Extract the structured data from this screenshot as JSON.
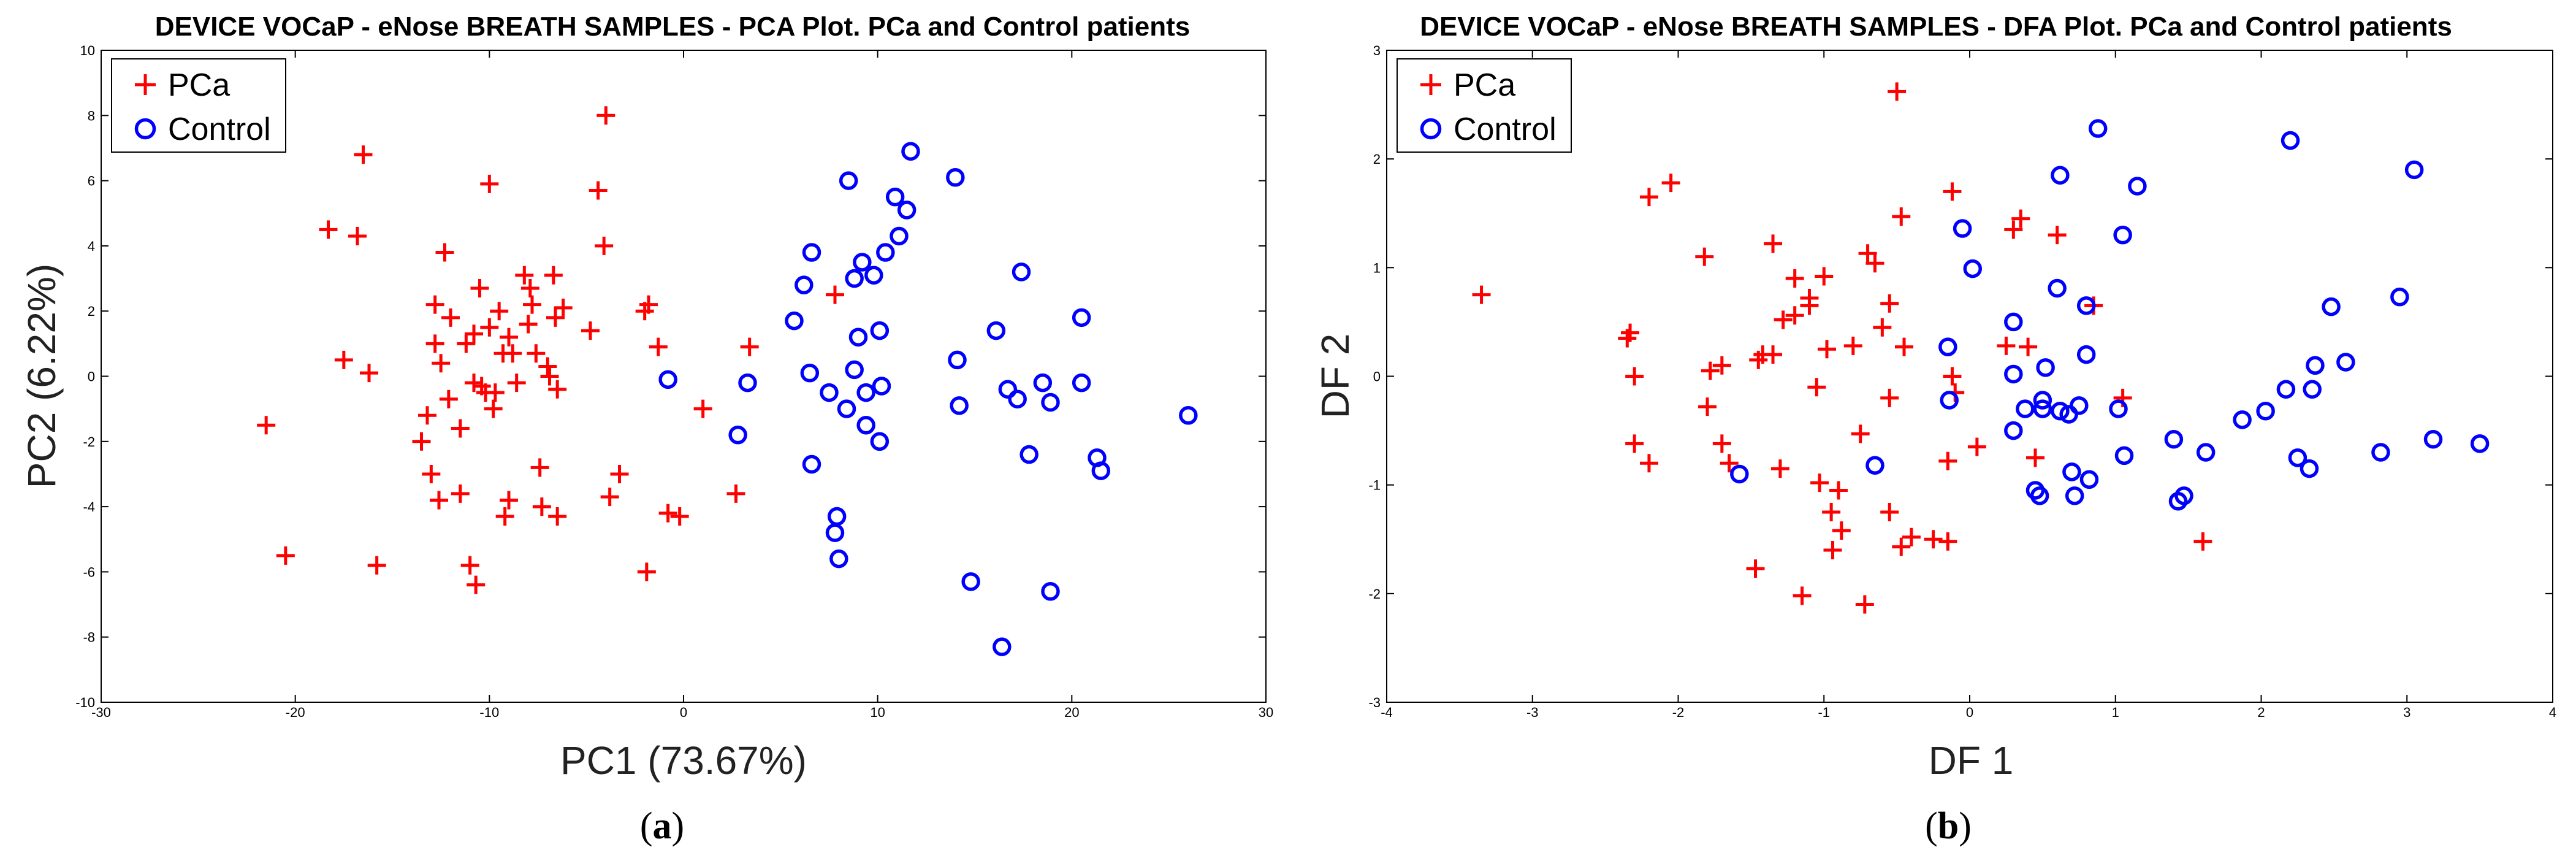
{
  "chart_data": [
    {
      "id": "a",
      "type": "scatter",
      "title": "DEVICE VOCaP - eNose BREATH SAMPLES - PCA Plot. PCa and Control patients",
      "xlabel": "PC1 (73.67%)",
      "ylabel": "PC2 (6.22%)",
      "xlim": [
        -30,
        30
      ],
      "ylim": [
        -10,
        10
      ],
      "xticks": [
        -30,
        -20,
        -10,
        0,
        10,
        20,
        30
      ],
      "yticks": [
        -10,
        -8,
        -6,
        -4,
        -2,
        0,
        2,
        4,
        6,
        8,
        10
      ],
      "legend_position": "top-left",
      "caption": {
        "open": "(",
        "letter": "a",
        "close": ")"
      },
      "series": [
        {
          "name": "PCa",
          "marker": "plus",
          "color": "#ff0000",
          "points": [
            [
              -21.5,
              -1.5
            ],
            [
              -20.5,
              -5.5
            ],
            [
              -18.3,
              4.5
            ],
            [
              -17.5,
              0.5
            ],
            [
              -16.8,
              4.3
            ],
            [
              -16.5,
              6.8
            ],
            [
              -16.2,
              0.1
            ],
            [
              -15.8,
              -5.8
            ],
            [
              -13.5,
              -2
            ],
            [
              -13.2,
              -1.2
            ],
            [
              -13,
              -3
            ],
            [
              -12.8,
              1
            ],
            [
              -12.8,
              2.2
            ],
            [
              -12.6,
              -3.8
            ],
            [
              -12.5,
              0.4
            ],
            [
              -12.3,
              3.8
            ],
            [
              -12.1,
              -0.7
            ],
            [
              -12,
              1.8
            ],
            [
              -11.5,
              -1.6
            ],
            [
              -11.5,
              -3.6
            ],
            [
              -11.2,
              1
            ],
            [
              -11,
              -5.8
            ],
            [
              -10.8,
              1.3
            ],
            [
              -10.8,
              -0.2
            ],
            [
              -10.7,
              -6.4
            ],
            [
              -10.5,
              2.7
            ],
            [
              -10.4,
              -0.3
            ],
            [
              -10.2,
              -0.5
            ],
            [
              -10,
              5.9
            ],
            [
              -10,
              1.5
            ],
            [
              -9.8,
              -1
            ],
            [
              -9.7,
              -0.5
            ],
            [
              -9.5,
              2
            ],
            [
              -9.3,
              0.7
            ],
            [
              -9.2,
              -4.3
            ],
            [
              -9,
              -3.8
            ],
            [
              -9,
              1.2
            ],
            [
              -8.8,
              0.7
            ],
            [
              -8.6,
              -0.2
            ],
            [
              -8.2,
              3.1
            ],
            [
              -8,
              1.6
            ],
            [
              -7.9,
              2.7
            ],
            [
              -7.8,
              2.2
            ],
            [
              -7.6,
              0.7
            ],
            [
              -7.4,
              -2.8
            ],
            [
              -7.3,
              -4
            ],
            [
              -7,
              0.3
            ],
            [
              -6.9,
              0
            ],
            [
              -6.7,
              3.1
            ],
            [
              -6.6,
              1.8
            ],
            [
              -6.5,
              -4.3
            ],
            [
              -6.5,
              -0.4
            ],
            [
              -6.2,
              2.1
            ],
            [
              -4.8,
              1.4
            ],
            [
              -4.4,
              5.7
            ],
            [
              -4,
              8
            ],
            [
              -4.1,
              4
            ],
            [
              -3.8,
              -3.7
            ],
            [
              -3.3,
              -3
            ],
            [
              -2,
              2
            ],
            [
              -1.8,
              2.2
            ],
            [
              -1.9,
              -6
            ],
            [
              -1.3,
              0.9
            ],
            [
              -0.8,
              -4.2
            ],
            [
              -0.2,
              -4.3
            ],
            [
              1,
              -1
            ],
            [
              2.7,
              -3.6
            ],
            [
              3.4,
              0.9
            ],
            [
              7.8,
              2.5
            ]
          ]
        },
        {
          "name": "Control",
          "marker": "circle",
          "color": "#0000ff",
          "points": [
            [
              -0.8,
              -0.1
            ],
            [
              2.8,
              -1.8
            ],
            [
              3.3,
              -0.2
            ],
            [
              5.7,
              1.7
            ],
            [
              6.2,
              2.8
            ],
            [
              6.5,
              0.1
            ],
            [
              6.6,
              3.8
            ],
            [
              6.6,
              -2.7
            ],
            [
              7.5,
              -0.5
            ],
            [
              7.9,
              -4.3
            ],
            [
              7.8,
              -4.8
            ],
            [
              8,
              -5.6
            ],
            [
              8.4,
              -1
            ],
            [
              8.5,
              6
            ],
            [
              8.8,
              0.2
            ],
            [
              8.8,
              3
            ],
            [
              9,
              1.2
            ],
            [
              9.2,
              3.5
            ],
            [
              9.4,
              -1.5
            ],
            [
              9.4,
              -0.5
            ],
            [
              9.8,
              3.1
            ],
            [
              10.1,
              1.4
            ],
            [
              10.1,
              -2
            ],
            [
              10.2,
              -0.3
            ],
            [
              10.4,
              3.8
            ],
            [
              10.9,
              5.5
            ],
            [
              11.1,
              4.3
            ],
            [
              11.5,
              5.1
            ],
            [
              11.7,
              6.9
            ],
            [
              14,
              6.1
            ],
            [
              14.1,
              0.5
            ],
            [
              14.2,
              -0.9
            ],
            [
              14.8,
              -6.3
            ],
            [
              16.1,
              1.4
            ],
            [
              16.4,
              -8.3
            ],
            [
              16.7,
              -0.4
            ],
            [
              17.2,
              -0.7
            ],
            [
              17.4,
              3.2
            ],
            [
              17.8,
              -2.4
            ],
            [
              18.5,
              -0.2
            ],
            [
              18.9,
              -0.8
            ],
            [
              18.9,
              -6.6
            ],
            [
              20.5,
              -0.2
            ],
            [
              20.5,
              1.8
            ],
            [
              21.3,
              -2.5
            ],
            [
              21.5,
              -2.9
            ],
            [
              26,
              -1.2
            ]
          ]
        }
      ]
    },
    {
      "id": "b",
      "type": "scatter",
      "title": "DEVICE VOCaP - eNose BREATH SAMPLES - DFA Plot. PCa and Control patients",
      "xlabel": "DF 1",
      "ylabel": "DF 2",
      "xlim": [
        -4,
        4
      ],
      "ylim": [
        -3,
        3
      ],
      "xticks": [
        -4,
        -3,
        -2,
        -1,
        0,
        1,
        2,
        3,
        4
      ],
      "yticks": [
        -3,
        -2,
        -1,
        0,
        1,
        2,
        3
      ],
      "legend_position": "top-left",
      "caption": {
        "open": "(",
        "letter": "b",
        "close": ")"
      },
      "series": [
        {
          "name": "PCa",
          "marker": "plus",
          "color": "#ff0000",
          "points": [
            [
              -3.35,
              0.75
            ],
            [
              -2.35,
              0.35
            ],
            [
              -2.33,
              0.4
            ],
            [
              -2.3,
              0
            ],
            [
              -2.3,
              -0.62
            ],
            [
              -2.2,
              -0.8
            ],
            [
              -2.2,
              1.65
            ],
            [
              -2.05,
              1.78
            ],
            [
              -1.82,
              1.1
            ],
            [
              -1.8,
              -0.28
            ],
            [
              -1.78,
              0.05
            ],
            [
              -1.7,
              -0.62
            ],
            [
              -1.7,
              0.1
            ],
            [
              -1.65,
              -0.8
            ],
            [
              -1.47,
              -1.77
            ],
            [
              -1.45,
              0.15
            ],
            [
              -1.42,
              0.2
            ],
            [
              -1.35,
              1.22
            ],
            [
              -1.35,
              0.2
            ],
            [
              -1.3,
              -0.85
            ],
            [
              -1.28,
              0.52
            ],
            [
              -1.2,
              0.56
            ],
            [
              -1.2,
              0.9
            ],
            [
              -1.15,
              -2.02
            ],
            [
              -1.1,
              0.65
            ],
            [
              -1.1,
              0.72
            ],
            [
              -1.05,
              -0.1
            ],
            [
              -1.03,
              -0.98
            ],
            [
              -1,
              0.92
            ],
            [
              -0.98,
              0.25
            ],
            [
              -0.95,
              -1.25
            ],
            [
              -0.94,
              -1.6
            ],
            [
              -0.9,
              -1.05
            ],
            [
              -0.88,
              -1.42
            ],
            [
              -0.8,
              0.28
            ],
            [
              -0.75,
              -0.53
            ],
            [
              -0.72,
              -2.1
            ],
            [
              -0.7,
              1.13
            ],
            [
              -0.65,
              1.04
            ],
            [
              -0.6,
              0.45
            ],
            [
              -0.55,
              0.67
            ],
            [
              -0.55,
              -0.2
            ],
            [
              -0.55,
              -1.25
            ],
            [
              -0.5,
              2.62
            ],
            [
              -0.47,
              1.47
            ],
            [
              -0.47,
              -1.57
            ],
            [
              -0.45,
              0.27
            ],
            [
              -0.4,
              -1.48
            ],
            [
              -0.25,
              -1.5
            ],
            [
              -0.15,
              -1.52
            ],
            [
              -0.15,
              -0.78
            ],
            [
              -0.12,
              1.7
            ],
            [
              -0.12,
              0
            ],
            [
              -0.1,
              -0.15
            ],
            [
              0.05,
              -0.65
            ],
            [
              0.25,
              0.28
            ],
            [
              0.3,
              1.35
            ],
            [
              0.35,
              1.45
            ],
            [
              0.4,
              0.27
            ],
            [
              0.45,
              -0.75
            ],
            [
              0.6,
              1.3
            ],
            [
              0.85,
              0.65
            ],
            [
              1.05,
              -0.2
            ],
            [
              1.6,
              -1.52
            ]
          ]
        },
        {
          "name": "Control",
          "marker": "circle",
          "color": "#0000ff",
          "points": [
            [
              -1.58,
              -0.9
            ],
            [
              -0.65,
              -0.82
            ],
            [
              -0.15,
              0.27
            ],
            [
              -0.14,
              -0.22
            ],
            [
              -0.05,
              1.36
            ],
            [
              0.02,
              0.99
            ],
            [
              0.3,
              0.5
            ],
            [
              0.3,
              0.02
            ],
            [
              0.3,
              -0.5
            ],
            [
              0.38,
              -0.3
            ],
            [
              0.45,
              -1.05
            ],
            [
              0.48,
              -1.1
            ],
            [
              0.5,
              -0.22
            ],
            [
              0.5,
              -0.3
            ],
            [
              0.52,
              0.08
            ],
            [
              0.6,
              0.81
            ],
            [
              0.62,
              1.85
            ],
            [
              0.62,
              -0.32
            ],
            [
              0.68,
              -0.35
            ],
            [
              0.7,
              -0.88
            ],
            [
              0.72,
              -1.1
            ],
            [
              0.75,
              -0.27
            ],
            [
              0.8,
              0.65
            ],
            [
              0.8,
              0.2
            ],
            [
              0.82,
              -0.95
            ],
            [
              0.88,
              2.28
            ],
            [
              1.02,
              -0.3
            ],
            [
              1.05,
              1.3
            ],
            [
              1.06,
              -0.73
            ],
            [
              1.15,
              1.75
            ],
            [
              1.4,
              -0.58
            ],
            [
              1.43,
              -1.15
            ],
            [
              1.47,
              -1.1
            ],
            [
              1.62,
              -0.7
            ],
            [
              1.87,
              -0.4
            ],
            [
              2.03,
              -0.32
            ],
            [
              2.17,
              -0.12
            ],
            [
              2.2,
              2.17
            ],
            [
              2.25,
              -0.75
            ],
            [
              2.33,
              -0.85
            ],
            [
              2.35,
              -0.12
            ],
            [
              2.37,
              0.1
            ],
            [
              2.48,
              0.64
            ],
            [
              2.58,
              0.13
            ],
            [
              2.82,
              -0.7
            ],
            [
              2.95,
              0.73
            ],
            [
              3.05,
              1.9
            ],
            [
              3.18,
              -0.58
            ],
            [
              3.5,
              -0.62
            ]
          ]
        }
      ]
    }
  ]
}
